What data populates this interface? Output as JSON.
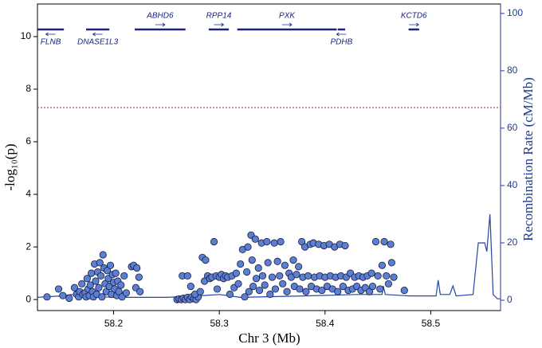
{
  "chart_data": {
    "type": "scatter",
    "x_label": "Chr 3 (Mb)",
    "y_label": "-log₁₀(p)",
    "y2_label": "Recombination Rate (cM/Mb)",
    "xlim": [
      58.128,
      58.566
    ],
    "xticks": [
      58.2,
      58.3,
      58.4,
      58.5
    ],
    "ylim": [
      -0.42,
      11.24
    ],
    "yticks": [
      0,
      2,
      4,
      6,
      8,
      10
    ],
    "y2lim": [
      -3.6,
      103.3
    ],
    "y2ticks": [
      0,
      20,
      40,
      60,
      80,
      100
    ],
    "threshold": 7.3,
    "threshold_color": "#b5523b",
    "genes": [
      {
        "name": "FLNB",
        "start": 58.128,
        "end": 58.153,
        "strand": "-"
      },
      {
        "name": "DNASE1L3",
        "start": 58.174,
        "end": 58.196,
        "strand": "-"
      },
      {
        "name": "ABHD6",
        "start": 58.22,
        "end": 58.268,
        "strand": "+"
      },
      {
        "name": "RPP14",
        "start": 58.29,
        "end": 58.309,
        "strand": "+"
      },
      {
        "name": "PXK",
        "start": 58.317,
        "end": 58.411,
        "strand": "+"
      },
      {
        "name": "PDHB",
        "start": 58.412,
        "end": 58.419,
        "strand": "-"
      },
      {
        "name": "KCTD6",
        "start": 58.479,
        "end": 58.489,
        "strand": "+"
      }
    ],
    "gene_color": "#1a237e",
    "points": {
      "color": "#5b7fd3",
      "x": [
        58.137,
        58.148,
        58.152,
        58.158,
        58.163,
        58.165,
        58.167,
        58.168,
        58.17,
        58.171,
        58.173,
        58.174,
        58.175,
        58.176,
        58.177,
        58.178,
        58.179,
        58.18,
        58.181,
        58.182,
        58.183,
        58.184,
        58.185,
        58.186,
        58.187,
        58.188,
        58.189,
        58.19,
        58.191,
        58.192,
        58.193,
        58.194,
        58.195,
        58.196,
        58.197,
        58.198,
        58.199,
        58.2,
        58.201,
        58.202,
        58.203,
        58.204,
        58.205,
        58.207,
        58.208,
        58.21,
        58.212,
        58.217,
        58.219,
        58.221,
        58.222,
        58.224,
        58.225,
        58.26,
        58.262,
        58.264,
        58.266,
        58.268,
        58.27,
        58.272,
        58.274,
        58.276,
        58.278,
        58.28,
        58.265,
        58.27,
        58.273,
        58.277,
        58.282,
        58.284,
        58.286,
        58.287,
        58.289,
        58.291,
        58.293,
        58.295,
        58.297,
        58.298,
        58.3,
        58.302,
        58.304,
        58.306,
        58.308,
        58.31,
        58.312,
        58.314,
        58.316,
        58.318,
        58.32,
        58.322,
        58.324,
        58.326,
        58.327,
        58.328,
        58.33,
        58.331,
        58.332,
        58.334,
        58.335,
        58.337,
        58.338,
        58.34,
        58.341,
        58.343,
        58.345,
        58.346,
        58.348,
        58.35,
        58.352,
        58.353,
        58.355,
        58.357,
        58.358,
        58.36,
        58.362,
        58.364,
        58.366,
        58.368,
        58.37,
        58.371,
        58.373,
        58.375,
        58.376,
        58.378,
        58.379,
        58.381,
        58.382,
        58.384,
        58.386,
        58.387,
        58.389,
        58.39,
        58.392,
        58.394,
        58.395,
        58.397,
        58.399,
        58.4,
        58.402,
        58.404,
        58.405,
        58.407,
        58.409,
        58.41,
        58.412,
        58.414,
        58.415,
        58.417,
        58.419,
        58.42,
        58.422,
        58.424,
        58.426,
        58.428,
        58.43,
        58.432,
        58.434,
        58.436,
        58.438,
        58.44,
        58.442,
        58.444,
        58.445,
        58.448,
        58.45,
        58.452,
        58.454,
        58.456,
        58.458,
        58.46,
        58.462,
        58.463,
        58.465,
        58.475
      ],
      "y": [
        0.1,
        0.4,
        0.15,
        0.05,
        0.45,
        0.2,
        0.1,
        0.3,
        0.6,
        0.2,
        0.25,
        0.1,
        0.8,
        0.4,
        0.15,
        0.55,
        1.0,
        0.3,
        0.1,
        1.35,
        0.7,
        0.2,
        1.05,
        0.45,
        1.4,
        0.9,
        0.1,
        1.7,
        1.2,
        0.6,
        0.3,
        1.1,
        0.8,
        0.5,
        1.3,
        0.2,
        0.95,
        0.65,
        0.4,
        1.0,
        0.15,
        0.7,
        0.3,
        0.55,
        0.1,
        0.9,
        0.25,
        1.25,
        1.3,
        0.45,
        1.2,
        0.85,
        0.3,
        0.0,
        0.02,
        0.0,
        0.05,
        0.0,
        0.08,
        0.0,
        0.1,
        0.03,
        0.0,
        0.1,
        0.9,
        0.9,
        0.5,
        0.2,
        0.3,
        1.6,
        0.7,
        1.5,
        0.9,
        0.8,
        0.85,
        2.2,
        0.9,
        0.4,
        0.85,
        0.95,
        0.8,
        0.9,
        0.85,
        0.2,
        0.9,
        0.45,
        1.0,
        0.6,
        1.35,
        1.9,
        0.1,
        1.05,
        2.0,
        0.3,
        2.45,
        1.5,
        0.5,
        2.3,
        0.8,
        1.2,
        0.35,
        2.15,
        0.9,
        0.55,
        2.2,
        1.4,
        0.2,
        0.85,
        2.15,
        0.4,
        1.45,
        0.9,
        2.2,
        0.6,
        1.3,
        0.3,
        1.0,
        0.85,
        1.5,
        0.5,
        0.95,
        1.25,
        0.4,
        2.2,
        0.85,
        2.0,
        0.3,
        0.9,
        2.1,
        0.5,
        2.15,
        0.85,
        0.4,
        2.1,
        0.9,
        0.35,
        2.05,
        0.85,
        0.5,
        2.1,
        0.9,
        0.4,
        2.0,
        0.85,
        0.3,
        2.1,
        0.9,
        0.5,
        2.05,
        0.85,
        0.35,
        1.0,
        0.4,
        0.85,
        0.5,
        0.9,
        0.35,
        0.85,
        0.45,
        0.9,
        0.3,
        1.0,
        0.5,
        2.2,
        0.9,
        0.4,
        1.3,
        2.2,
        0.9,
        0.6,
        2.1,
        1.4,
        0.85,
        0.35
      ]
    },
    "recombination": {
      "axis": "y2",
      "color": "#2444a8",
      "x": [
        58.128,
        58.15,
        58.16,
        58.17,
        58.2,
        58.21,
        58.212,
        58.25,
        58.28,
        58.3,
        58.32,
        58.38,
        58.43,
        58.454,
        58.455,
        58.457,
        58.48,
        58.505,
        58.507,
        58.509,
        58.518,
        58.521,
        58.524,
        58.54,
        58.545,
        58.551,
        58.553,
        58.556,
        58.559,
        58.563,
        58.566
      ],
      "values": [
        1,
        1.5,
        2,
        1.5,
        1,
        3,
        1,
        1,
        1.5,
        2,
        1,
        1.5,
        2,
        2,
        5,
        2,
        1.5,
        1.5,
        7,
        2,
        2,
        5,
        1.5,
        2,
        20,
        20,
        17,
        30,
        2,
        0.5,
        0.5
      ]
    }
  }
}
